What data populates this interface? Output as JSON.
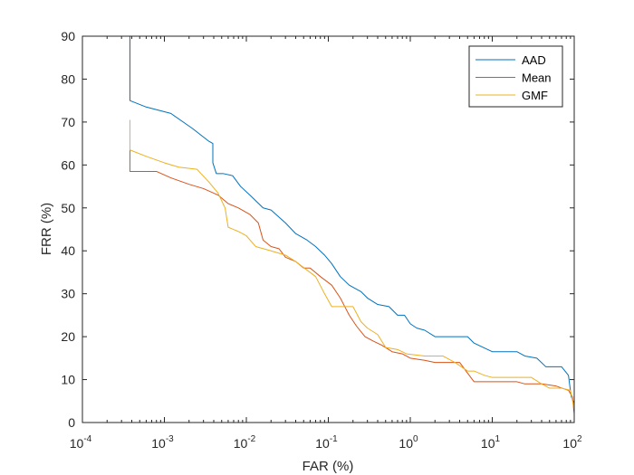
{
  "chart_data": {
    "type": "line",
    "title": "",
    "xlabel": "FAR (%)",
    "ylabel": "FRR (%)",
    "xscale": "log",
    "xlim": [
      0.0001,
      100
    ],
    "ylim": [
      0,
      90
    ],
    "x_ticks": [
      {
        "value": 0.0001,
        "base": "10",
        "exp": "-4"
      },
      {
        "value": 0.001,
        "base": "10",
        "exp": "-3"
      },
      {
        "value": 0.01,
        "base": "10",
        "exp": "-2"
      },
      {
        "value": 0.1,
        "base": "10",
        "exp": "-1"
      },
      {
        "value": 1,
        "base": "10",
        "exp": "0"
      },
      {
        "value": 10,
        "base": "10",
        "exp": "1"
      },
      {
        "value": 100,
        "base": "10",
        "exp": "2"
      }
    ],
    "y_ticks": [
      "0",
      "10",
      "20",
      "30",
      "40",
      "50",
      "60",
      "70",
      "80",
      "90"
    ],
    "grid": false,
    "legend_position": "top-right",
    "series": [
      {
        "name": "AAD",
        "color": "#0072BD",
        "points": [
          [
            0.00038,
            90
          ],
          [
            0.00038,
            75
          ],
          [
            0.0006,
            73.5
          ],
          [
            0.0012,
            72
          ],
          [
            0.0022,
            68.5
          ],
          [
            0.0035,
            65.5
          ],
          [
            0.0039,
            65
          ],
          [
            0.0039,
            60.5
          ],
          [
            0.0043,
            58
          ],
          [
            0.0052,
            58
          ],
          [
            0.0068,
            57.5
          ],
          [
            0.0085,
            55
          ],
          [
            0.011,
            53
          ],
          [
            0.016,
            50
          ],
          [
            0.02,
            49.5
          ],
          [
            0.03,
            46.5
          ],
          [
            0.04,
            44
          ],
          [
            0.055,
            42.5
          ],
          [
            0.07,
            41
          ],
          [
            0.09,
            39
          ],
          [
            0.11,
            37
          ],
          [
            0.14,
            34
          ],
          [
            0.18,
            32
          ],
          [
            0.25,
            30.5
          ],
          [
            0.3,
            29
          ],
          [
            0.4,
            27.5
          ],
          [
            0.55,
            27
          ],
          [
            0.7,
            25
          ],
          [
            0.85,
            25
          ],
          [
            1.0,
            23
          ],
          [
            1.2,
            22
          ],
          [
            1.5,
            21.5
          ],
          [
            2.0,
            20
          ],
          [
            3.0,
            20
          ],
          [
            5.0,
            20
          ],
          [
            6.0,
            18.5
          ],
          [
            10,
            16.5
          ],
          [
            20,
            16.5
          ],
          [
            25,
            15.5
          ],
          [
            35,
            15
          ],
          [
            45,
            13
          ],
          [
            70,
            13
          ],
          [
            85,
            11
          ],
          [
            92,
            6
          ],
          [
            100,
            4.5
          ],
          [
            100,
            0
          ]
        ]
      },
      {
        "name": "Mean",
        "color": "#D95319",
        "points": [
          [
            0.00038,
            63.5
          ],
          [
            0.00038,
            58.5
          ],
          [
            0.0008,
            58.5
          ],
          [
            0.0012,
            57
          ],
          [
            0.002,
            55.5
          ],
          [
            0.003,
            54.5
          ],
          [
            0.0045,
            53
          ],
          [
            0.006,
            51
          ],
          [
            0.008,
            50
          ],
          [
            0.011,
            48.5
          ],
          [
            0.014,
            46.5
          ],
          [
            0.016,
            42.5
          ],
          [
            0.02,
            41
          ],
          [
            0.025,
            40.5
          ],
          [
            0.03,
            38.5
          ],
          [
            0.04,
            37.5
          ],
          [
            0.05,
            36
          ],
          [
            0.06,
            36
          ],
          [
            0.08,
            34
          ],
          [
            0.11,
            32
          ],
          [
            0.14,
            29
          ],
          [
            0.18,
            25
          ],
          [
            0.22,
            22.5
          ],
          [
            0.28,
            20
          ],
          [
            0.35,
            19
          ],
          [
            0.45,
            18
          ],
          [
            0.6,
            16.5
          ],
          [
            0.8,
            16
          ],
          [
            1.0,
            15
          ],
          [
            1.5,
            14.5
          ],
          [
            2.0,
            14
          ],
          [
            4.0,
            14
          ],
          [
            5.0,
            11.5
          ],
          [
            6.0,
            9.5
          ],
          [
            10,
            9.5
          ],
          [
            20,
            9.5
          ],
          [
            25,
            9
          ],
          [
            40,
            9
          ],
          [
            60,
            8.5
          ],
          [
            85,
            7.5
          ],
          [
            95,
            6
          ],
          [
            100,
            2
          ],
          [
            100,
            0
          ]
        ]
      },
      {
        "name": "GMF",
        "color": "#EDB120",
        "points": [
          [
            0.00038,
            70.5
          ],
          [
            0.00038,
            63.5
          ],
          [
            0.0006,
            62
          ],
          [
            0.001,
            60.5
          ],
          [
            0.0015,
            59.5
          ],
          [
            0.0025,
            59
          ],
          [
            0.0035,
            56
          ],
          [
            0.0045,
            53.5
          ],
          [
            0.0055,
            50
          ],
          [
            0.006,
            45.5
          ],
          [
            0.008,
            44.5
          ],
          [
            0.01,
            43.5
          ],
          [
            0.013,
            41
          ],
          [
            0.02,
            40
          ],
          [
            0.03,
            39
          ],
          [
            0.04,
            37.5
          ],
          [
            0.055,
            35.5
          ],
          [
            0.07,
            34
          ],
          [
            0.09,
            30
          ],
          [
            0.11,
            27
          ],
          [
            0.2,
            27
          ],
          [
            0.25,
            23.5
          ],
          [
            0.3,
            22
          ],
          [
            0.4,
            20.5
          ],
          [
            0.5,
            17.5
          ],
          [
            0.7,
            17
          ],
          [
            0.9,
            16
          ],
          [
            1.5,
            15.5
          ],
          [
            2.5,
            15.5
          ],
          [
            3.5,
            14
          ],
          [
            5.0,
            12
          ],
          [
            6.0,
            12
          ],
          [
            8.0,
            11
          ],
          [
            10,
            10.5
          ],
          [
            30,
            10.5
          ],
          [
            40,
            9
          ],
          [
            50,
            8
          ],
          [
            70,
            8
          ],
          [
            90,
            7.5
          ],
          [
            100,
            3
          ],
          [
            100,
            0
          ]
        ]
      }
    ]
  }
}
